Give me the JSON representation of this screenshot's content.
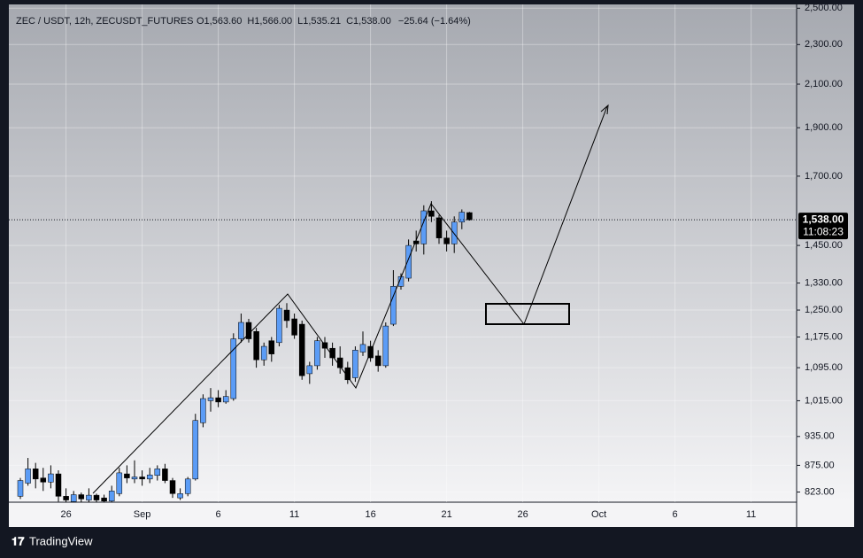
{
  "header": {
    "symbol": "ZEC / USDT, 12h, ZECUSDT_FUTURES",
    "ohlc_labels": [
      "O1,563.60",
      "H1,566.00",
      "L1,535.21",
      "C1,538.00"
    ],
    "change": "−25.64 (−1.64%)"
  },
  "footer": {
    "brand": "TradingView"
  },
  "chart_data": {
    "type": "candlestick",
    "log_scale": true,
    "grid": true,
    "up_color": "#5b9cf6",
    "down_color": "#000000",
    "open": [
      815,
      840,
      868,
      850,
      842,
      858,
      815,
      805,
      818,
      808,
      817,
      812,
      806,
      820,
      858,
      848,
      852,
      848,
      855,
      868,
      845,
      812,
      820,
      848,
      965,
      1015,
      1022,
      1012,
      1020,
      1170,
      1215,
      1190,
      1115,
      1165,
      1160,
      1250,
      1225,
      1210,
      1080,
      1100,
      1160,
      1145,
      1120,
      1095,
      1070,
      1135,
      1150,
      1125,
      1100,
      1210,
      1320,
      1345,
      1465,
      1455,
      1570,
      1545,
      1475,
      1455,
      1530,
      1563.6
    ],
    "high": [
      850,
      890,
      880,
      870,
      875,
      865,
      830,
      825,
      822,
      830,
      820,
      818,
      835,
      870,
      875,
      885,
      865,
      870,
      875,
      878,
      850,
      830,
      852,
      985,
      1030,
      1045,
      1040,
      1040,
      1185,
      1240,
      1225,
      1200,
      1160,
      1175,
      1265,
      1270,
      1240,
      1220,
      1110,
      1175,
      1175,
      1160,
      1150,
      1110,
      1150,
      1190,
      1165,
      1140,
      1215,
      1370,
      1360,
      1470,
      1500,
      1590,
      1605,
      1555,
      1500,
      1550,
      1575,
      1566
    ],
    "low": [
      810,
      835,
      830,
      825,
      830,
      805,
      800,
      800,
      802,
      802,
      804,
      800,
      804,
      815,
      840,
      840,
      835,
      840,
      845,
      840,
      812,
      808,
      815,
      845,
      955,
      990,
      1000,
      1008,
      1015,
      1160,
      1160,
      1095,
      1100,
      1110,
      1150,
      1200,
      1170,
      1065,
      1055,
      1090,
      1120,
      1100,
      1080,
      1055,
      1060,
      1125,
      1110,
      1085,
      1095,
      1205,
      1310,
      1335,
      1430,
      1420,
      1530,
      1455,
      1430,
      1425,
      1505,
      1535.21
    ],
    "close": [
      845,
      868,
      848,
      842,
      858,
      815,
      808,
      818,
      810,
      817,
      808,
      806,
      825,
      860,
      850,
      852,
      848,
      856,
      868,
      845,
      820,
      820,
      848,
      970,
      1020,
      1022,
      1012,
      1025,
      1170,
      1215,
      1170,
      1115,
      1150,
      1130,
      1255,
      1220,
      1180,
      1075,
      1100,
      1165,
      1145,
      1120,
      1095,
      1065,
      1140,
      1155,
      1120,
      1100,
      1205,
      1320,
      1350,
      1450,
      1455,
      1570,
      1550,
      1475,
      1455,
      1530,
      1565,
      1538
    ],
    "ylim": [
      804,
      2522
    ],
    "yticks": [
      {
        "value": 823,
        "label": "823.00"
      },
      {
        "value": 875,
        "label": "875.00"
      },
      {
        "value": 935,
        "label": "935.00"
      },
      {
        "value": 1015,
        "label": "1,015.00"
      },
      {
        "value": 1095,
        "label": "1,095.00"
      },
      {
        "value": 1175,
        "label": "1,175.00"
      },
      {
        "value": 1250,
        "label": "1,250.00"
      },
      {
        "value": 1330,
        "label": "1,330.00"
      },
      {
        "value": 1450,
        "label": "1,450.00"
      },
      {
        "value": 1700,
        "label": "1,700.00"
      },
      {
        "value": 1900,
        "label": "1,900.00"
      },
      {
        "value": 2100,
        "label": "2,100.00"
      },
      {
        "value": 2300,
        "label": "2,300.00"
      },
      {
        "value": 2500,
        "label": "2,500.00"
      }
    ],
    "x_tick_labels": [
      "26",
      "Sep",
      "6",
      "11",
      "16",
      "21",
      "26",
      "Oct",
      "6",
      "11"
    ],
    "current_price": {
      "value": 1538,
      "label": "1,538.00"
    },
    "countdown": "11:08:23"
  }
}
